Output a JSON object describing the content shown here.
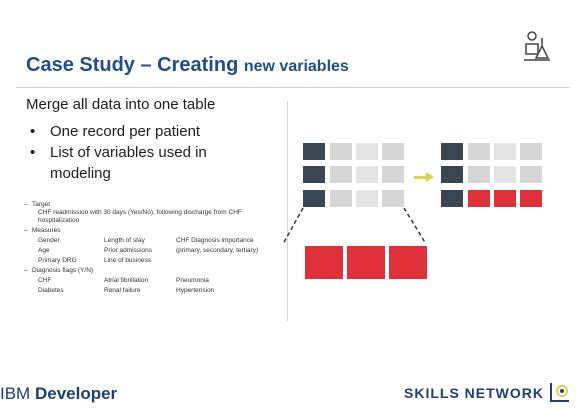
{
  "title": {
    "part1": "Case Study – Creating",
    "part2": "new variables"
  },
  "intro": "Merge all data into one table",
  "bullets": [
    "One record per patient",
    "List of variables used in",
    "modeling"
  ],
  "details": {
    "target_heading": "Target",
    "target_text": "CHF readmission with 30 days (Yes/No), following discharge from CHF hospitalization",
    "measures_heading": "Measures",
    "measures": [
      "Gender",
      "Length of stay",
      "CHF Diagnosis importance",
      "Age",
      "Prior admissions",
      "(primary, secondary, tertiary)",
      "Primary DRG",
      "Line of business",
      ""
    ],
    "flags_heading": "Diagnosis flags (Y/N)",
    "flags": [
      "CHF",
      "Atrial fibrillation",
      "Pneumonia",
      "Diabetes",
      "Renal failure",
      "Hypertension"
    ]
  },
  "footer": {
    "brand_prefix": "IBM",
    "brand_suffix": "Developer",
    "network": "SKILLS NETWORK"
  },
  "colors": {
    "title": "#1f4e8c",
    "dark_cell": "#3b4654",
    "red_cell": "#e0313a",
    "arrow": "#e2d04a",
    "footer": "#1e3f73"
  },
  "icons": {
    "corner_logo": "scientist-icon",
    "network_logo": "skills-network-icon"
  }
}
